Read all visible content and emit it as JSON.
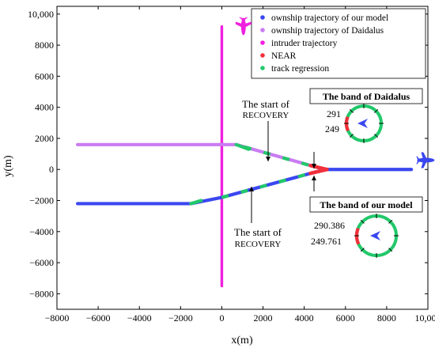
{
  "chart_data": {
    "type": "line",
    "xlabel": "x(m)",
    "ylabel": "y(m)",
    "xlim": [
      -8000,
      10000
    ],
    "ylim": [
      -9000,
      10500
    ],
    "xticks": [
      -8000,
      -6000,
      -4000,
      -2000,
      0,
      2000,
      4000,
      6000,
      8000,
      10000
    ],
    "yticks": [
      -8000,
      -6000,
      -4000,
      -2000,
      0,
      2000,
      4000,
      6000,
      8000,
      10000
    ],
    "xtick_labels": [
      "−8000",
      "−6000",
      "−4000",
      "−2000",
      "0",
      "2000",
      "4000",
      "6000",
      "8000",
      "10,000"
    ],
    "ytick_labels": [
      "−8000",
      "−6000",
      "−4000",
      "−2000",
      "0",
      "2000",
      "4000",
      "6000",
      "8000",
      "10,000"
    ],
    "grid": false,
    "legend_position": "top-right",
    "series": [
      {
        "name": "ownship trajectory of our model",
        "color": "#3a47f0",
        "x": [
          -7000,
          -1500,
          0,
          5000,
          9200
        ],
        "y": [
          -2200,
          -2200,
          -1800,
          0,
          0
        ]
      },
      {
        "name": "ownship trajectory of Daidalus",
        "color": "#c97cf2",
        "x": [
          -7000,
          700,
          1100,
          5000
        ],
        "y": [
          1600,
          1600,
          1450,
          0
        ]
      },
      {
        "name": "intruder trajectory",
        "color": "#f01fe0",
        "x": [
          0,
          0
        ],
        "y": [
          -7500,
          9200
        ]
      },
      {
        "name": "NEAR",
        "color": "#f0303a",
        "x": [
          4300,
          5100
        ],
        "y": [
          250,
          0
        ]
      },
      {
        "name": "track regression",
        "color": "#22c86a",
        "segments": [
          {
            "x": [
              700,
              1300
            ],
            "y": [
              1600,
              1300
            ]
          },
          {
            "x": [
              -1500,
              -1000
            ],
            "y": [
              -2200,
              -2000
            ]
          }
        ]
      }
    ],
    "annotations": [
      {
        "text_main": "The start of",
        "text_small": "RECOVERY",
        "x": 3000,
        "y": 900
      },
      {
        "text_main": "The start of",
        "text_small": "RECOVERY",
        "x": 2400,
        "y": -1400
      }
    ],
    "insets": [
      {
        "title": "The band of Daidalus",
        "values": [
          "291",
          "249"
        ]
      },
      {
        "title": "The band of our model",
        "values": [
          "290.386",
          "249.761"
        ]
      }
    ]
  },
  "icons": {
    "intruder": "aircraft-icon",
    "ownship": "aircraft-icon"
  }
}
